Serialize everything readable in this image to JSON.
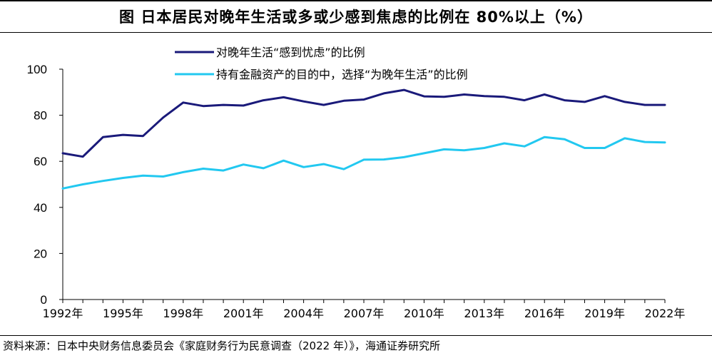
{
  "header": {
    "title": "图   日本居民对晚年生活或多或少感到焦虑的比例在 80%以上（%）"
  },
  "source_note": "资料来源：日本中央财务信息委员会《家庭财务行为民意调查（2022 年）》，海通证券研究所",
  "chart_data": {
    "type": "line",
    "title": "图   日本居民对晚年生活或多或少感到焦虑的比例在 80%以上（%）",
    "xlabel": "",
    "ylabel": "",
    "x": [
      1992,
      1993,
      1994,
      1995,
      1996,
      1997,
      1998,
      1999,
      2000,
      2001,
      2002,
      2003,
      2004,
      2005,
      2006,
      2007,
      2008,
      2009,
      2010,
      2011,
      2012,
      2013,
      2014,
      2015,
      2016,
      2017,
      2018,
      2019,
      2020,
      2021,
      2022
    ],
    "xticks": [
      "1992年",
      "1995年",
      "1998年",
      "2001年",
      "2004年",
      "2007年",
      "2010年",
      "2013年",
      "2016年",
      "2019年",
      "2022年"
    ],
    "xtick_years": [
      1992,
      1995,
      1998,
      2001,
      2004,
      2007,
      2010,
      2013,
      2016,
      2019,
      2022
    ],
    "yticks": [
      0,
      20,
      40,
      60,
      80,
      100
    ],
    "ylim": [
      0,
      100
    ],
    "grid": false,
    "legend_position": "top",
    "series": [
      {
        "name": "对晚年生活“感到忧虑”的比例",
        "color": "#1a1a7a",
        "values": [
          63.5,
          62.0,
          70.5,
          71.5,
          71.0,
          79.0,
          85.5,
          84.0,
          84.5,
          84.2,
          86.5,
          87.8,
          86.0,
          84.5,
          86.3,
          86.8,
          89.5,
          91.0,
          88.2,
          88.0,
          89.0,
          88.3,
          88.0,
          86.5,
          89.0,
          86.5,
          85.8,
          88.3,
          85.8,
          84.5,
          84.5
        ]
      },
      {
        "name": "持有金融资产的目的中，选择“为晚年生活”的比例",
        "color": "#22c8f0",
        "values": [
          48.2,
          50.0,
          51.5,
          52.8,
          53.8,
          53.4,
          55.3,
          56.8,
          56.0,
          58.6,
          57.0,
          60.3,
          57.5,
          58.8,
          56.6,
          60.7,
          60.8,
          61.8,
          63.5,
          65.2,
          64.8,
          65.8,
          67.8,
          66.5,
          70.5,
          69.6,
          65.8,
          65.8,
          70.0,
          68.4,
          68.2
        ]
      }
    ]
  }
}
